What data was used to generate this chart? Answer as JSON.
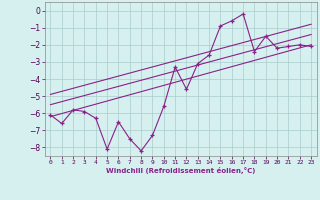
{
  "xlabel": "Windchill (Refroidissement éolien,°C)",
  "ylabel": "",
  "background_color": "#d6f0f0",
  "grid_color": "#aacccc",
  "line_color": "#882288",
  "xlim": [
    -0.5,
    23.5
  ],
  "ylim": [
    -8.5,
    0.5
  ],
  "xticks": [
    0,
    1,
    2,
    3,
    4,
    5,
    6,
    7,
    8,
    9,
    10,
    11,
    12,
    13,
    14,
    15,
    16,
    17,
    18,
    19,
    20,
    21,
    22,
    23
  ],
  "yticks": [
    0,
    -1,
    -2,
    -3,
    -4,
    -5,
    -6,
    -7,
    -8
  ],
  "line1_x": [
    0,
    1,
    2,
    3,
    4,
    5,
    6,
    7,
    8,
    9,
    10,
    11,
    12,
    13,
    14,
    15,
    16,
    17,
    18,
    19,
    20,
    21,
    22,
    23
  ],
  "line1_y": [
    -6.1,
    -6.6,
    -5.8,
    -5.9,
    -6.3,
    -8.1,
    -6.5,
    -7.5,
    -8.2,
    -7.3,
    -5.6,
    -3.3,
    -4.6,
    -3.1,
    -2.6,
    -0.9,
    -0.6,
    -0.2,
    -2.4,
    -1.5,
    -2.2,
    -2.1,
    -2.0,
    -2.1
  ],
  "line2_x": [
    0,
    23
  ],
  "line2_y": [
    -6.2,
    -2.0
  ],
  "line3_x": [
    0,
    23
  ],
  "line3_y": [
    -5.5,
    -1.4
  ],
  "line4_x": [
    0,
    23
  ],
  "line4_y": [
    -4.9,
    -0.8
  ]
}
